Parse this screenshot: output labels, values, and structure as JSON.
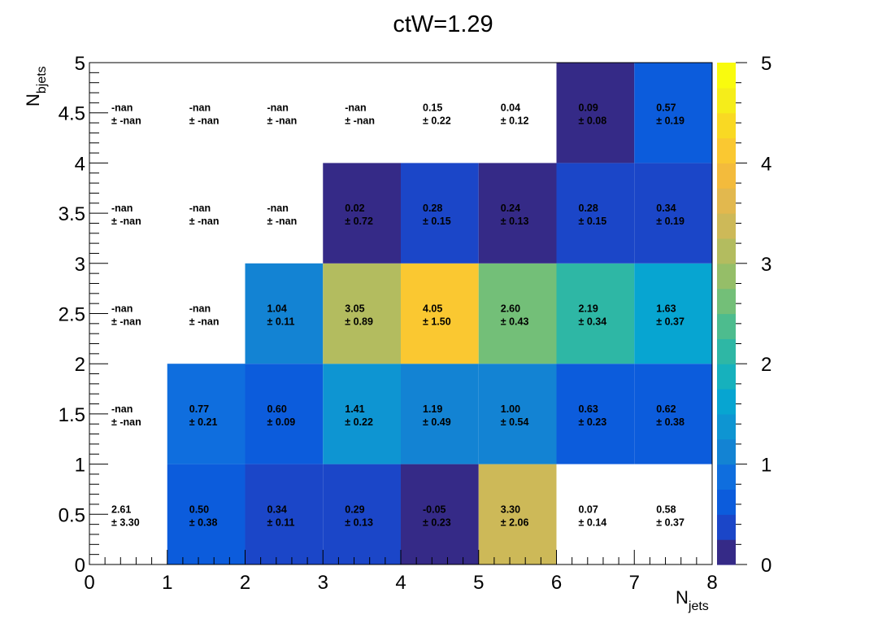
{
  "chart_data": {
    "type": "heatmap",
    "title": "ctW=1.29",
    "xlabel": {
      "main": "N",
      "sub": "jets"
    },
    "ylabel": {
      "main": "N",
      "sub": "bjets"
    },
    "xlim": [
      0,
      8
    ],
    "ylim": [
      0,
      5
    ],
    "zlim": [
      0,
      5
    ],
    "x_ticks": [
      "0",
      "1",
      "2",
      "3",
      "4",
      "5",
      "6",
      "7",
      "8"
    ],
    "y_ticks": [
      "0",
      "0.5",
      "1",
      "1.5",
      "2",
      "2.5",
      "3",
      "3.5",
      "4",
      "4.5",
      "5"
    ],
    "z_ticks": [
      "0",
      "1",
      "2",
      "3",
      "4",
      "5"
    ],
    "x_edges": [
      0,
      1,
      2,
      3,
      4,
      5,
      6,
      7,
      8
    ],
    "y_edges": [
      0,
      1,
      2,
      3,
      4,
      5
    ],
    "colorscale": [
      "#352a87",
      "#1b46c8",
      "#0c5cdc",
      "#0f6ede",
      "#1383d3",
      "#0e95d2",
      "#07a5d1",
      "#16b1bd",
      "#2eb7a5",
      "#4dbc8e",
      "#73bf78",
      "#95be68",
      "#b3bc5f",
      "#cdb958",
      "#e2b84e",
      "#f3bb3c",
      "#fac831",
      "#f9d923",
      "#f5ed1a",
      "#f9fb0e"
    ],
    "cells": [
      {
        "nbjets": 0,
        "njets": 0,
        "value": "2.61",
        "error": "± 3.30",
        "z": null
      },
      {
        "nbjets": 0,
        "njets": 1,
        "value": "0.50",
        "error": "± 0.38",
        "z": 0.5
      },
      {
        "nbjets": 0,
        "njets": 2,
        "value": "0.34",
        "error": "± 0.11",
        "z": 0.34
      },
      {
        "nbjets": 0,
        "njets": 3,
        "value": "0.29",
        "error": "± 0.13",
        "z": 0.29
      },
      {
        "nbjets": 0,
        "njets": 4,
        "value": "-0.05",
        "error": "± 0.23",
        "z": -0.05
      },
      {
        "nbjets": 0,
        "njets": 5,
        "value": "3.30",
        "error": "± 2.06",
        "z": 3.3
      },
      {
        "nbjets": 0,
        "njets": 6,
        "value": "0.07",
        "error": "± 0.14",
        "z": null
      },
      {
        "nbjets": 0,
        "njets": 7,
        "value": "0.58",
        "error": "± 0.37",
        "z": null
      },
      {
        "nbjets": 1,
        "njets": 0,
        "value": "-nan",
        "error": "± -nan",
        "z": null
      },
      {
        "nbjets": 1,
        "njets": 1,
        "value": "0.77",
        "error": "± 0.21",
        "z": 0.77
      },
      {
        "nbjets": 1,
        "njets": 2,
        "value": "0.60",
        "error": "± 0.09",
        "z": 0.6
      },
      {
        "nbjets": 1,
        "njets": 3,
        "value": "1.41",
        "error": "± 0.22",
        "z": 1.41
      },
      {
        "nbjets": 1,
        "njets": 4,
        "value": "1.19",
        "error": "± 0.49",
        "z": 1.19
      },
      {
        "nbjets": 1,
        "njets": 5,
        "value": "1.00",
        "error": "± 0.54",
        "z": 1.0
      },
      {
        "nbjets": 1,
        "njets": 6,
        "value": "0.63",
        "error": "± 0.23",
        "z": 0.63
      },
      {
        "nbjets": 1,
        "njets": 7,
        "value": "0.62",
        "error": "± 0.38",
        "z": 0.62
      },
      {
        "nbjets": 2,
        "njets": 0,
        "value": "-nan",
        "error": "± -nan",
        "z": null
      },
      {
        "nbjets": 2,
        "njets": 1,
        "value": "-nan",
        "error": "± -nan",
        "z": null
      },
      {
        "nbjets": 2,
        "njets": 2,
        "value": "1.04",
        "error": "± 0.11",
        "z": 1.04
      },
      {
        "nbjets": 2,
        "njets": 3,
        "value": "3.05",
        "error": "± 0.89",
        "z": 3.05
      },
      {
        "nbjets": 2,
        "njets": 4,
        "value": "4.05",
        "error": "± 1.50",
        "z": 4.05
      },
      {
        "nbjets": 2,
        "njets": 5,
        "value": "2.60",
        "error": "± 0.43",
        "z": 2.6
      },
      {
        "nbjets": 2,
        "njets": 6,
        "value": "2.19",
        "error": "± 0.34",
        "z": 2.19
      },
      {
        "nbjets": 2,
        "njets": 7,
        "value": "1.63",
        "error": "± 0.37",
        "z": 1.63
      },
      {
        "nbjets": 3,
        "njets": 0,
        "value": "-nan",
        "error": "± -nan",
        "z": null
      },
      {
        "nbjets": 3,
        "njets": 1,
        "value": "-nan",
        "error": "± -nan",
        "z": null
      },
      {
        "nbjets": 3,
        "njets": 2,
        "value": "-nan",
        "error": "± -nan",
        "z": null
      },
      {
        "nbjets": 3,
        "njets": 3,
        "value": "0.02",
        "error": "± 0.72",
        "z": 0.02
      },
      {
        "nbjets": 3,
        "njets": 4,
        "value": "0.28",
        "error": "± 0.15",
        "z": 0.28
      },
      {
        "nbjets": 3,
        "njets": 5,
        "value": "0.24",
        "error": "± 0.13",
        "z": 0.24
      },
      {
        "nbjets": 3,
        "njets": 6,
        "value": "0.28",
        "error": "± 0.15",
        "z": 0.28
      },
      {
        "nbjets": 3,
        "njets": 7,
        "value": "0.34",
        "error": "± 0.19",
        "z": 0.34
      },
      {
        "nbjets": 4,
        "njets": 0,
        "value": "-nan",
        "error": "± -nan",
        "z": null
      },
      {
        "nbjets": 4,
        "njets": 1,
        "value": "-nan",
        "error": "± -nan",
        "z": null
      },
      {
        "nbjets": 4,
        "njets": 2,
        "value": "-nan",
        "error": "± -nan",
        "z": null
      },
      {
        "nbjets": 4,
        "njets": 3,
        "value": "-nan",
        "error": "± -nan",
        "z": null
      },
      {
        "nbjets": 4,
        "njets": 4,
        "value": "0.15",
        "error": "± 0.22",
        "z": null
      },
      {
        "nbjets": 4,
        "njets": 5,
        "value": "0.04",
        "error": "± 0.12",
        "z": null
      },
      {
        "nbjets": 4,
        "njets": 6,
        "value": "0.09",
        "error": "± 0.08",
        "z": 0.09
      },
      {
        "nbjets": 4,
        "njets": 7,
        "value": "0.57",
        "error": "± 0.19",
        "z": 0.57
      }
    ]
  }
}
